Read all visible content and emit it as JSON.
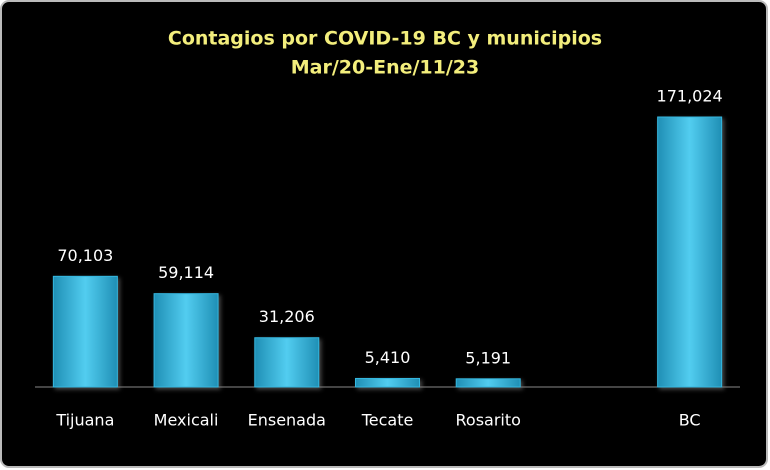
{
  "chart_data": {
    "type": "bar",
    "title": "Contagios por COVID-19 BC y municipios",
    "subtitle": "Mar/20-Ene/11/23",
    "categories": [
      "Tijuana",
      "Mexicali",
      "Ensenada",
      "Tecate",
      "Rosarito",
      null,
      "BC"
    ],
    "values": [
      70103,
      59114,
      31206,
      5410,
      5191,
      null,
      171024
    ],
    "value_labels": [
      "70,103",
      "59,114",
      "31,206",
      "5,410",
      "5,191",
      null,
      "171,024"
    ],
    "color": "#35b8e0"
  }
}
